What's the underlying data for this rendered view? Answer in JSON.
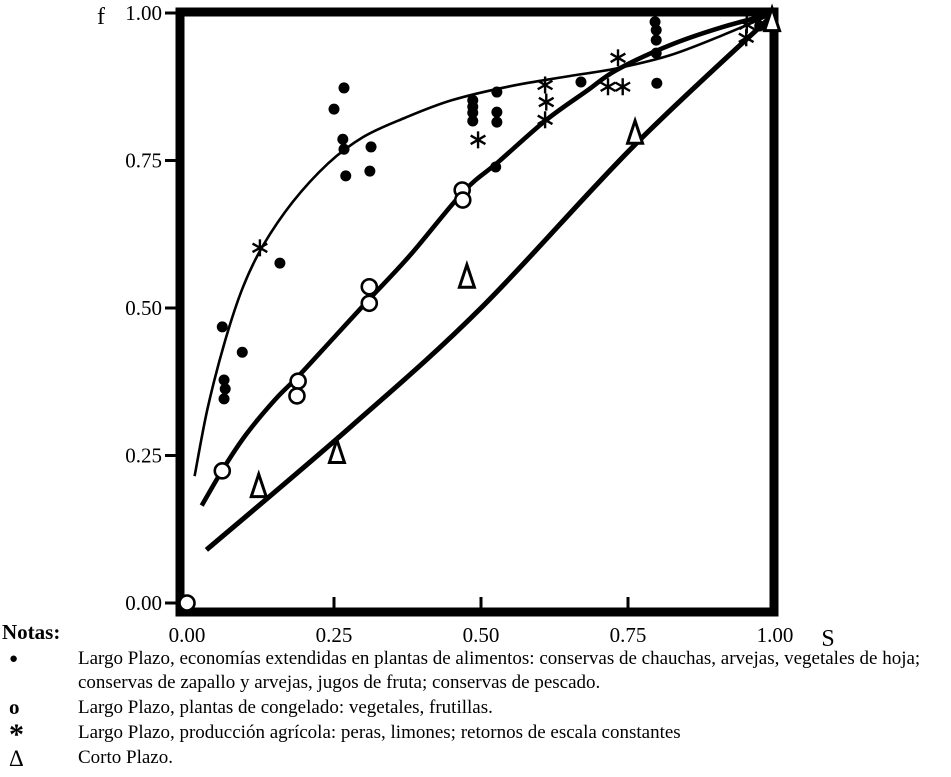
{
  "figure": {
    "notas_label": "Notas:",
    "notes": [
      {
        "symbol": "●",
        "marker": "dot",
        "text": "Largo Plazo, economías extendidas en plantas de alimentos: conservas de chauchas, arvejas, vegetales de hoja; conservas de zapallo y arvejas, jugos de fruta; conservas de pescado."
      },
      {
        "symbol": "o",
        "marker": "circle",
        "text": "Largo Plazo, plantas de congelado: vegetales, frutillas."
      },
      {
        "symbol": "*",
        "marker": "asterisk",
        "text": "Largo Plazo, producción agrícola: peras, limones; retornos de escala constantes"
      },
      {
        "symbol": "Δ",
        "marker": "triangle",
        "text": "Corto Plazo."
      }
    ]
  },
  "chart_data": {
    "type": "scatter",
    "title": "",
    "xlabel": "S",
    "ylabel": "f",
    "xlim": [
      0,
      1
    ],
    "ylim": [
      0,
      1
    ],
    "grid": false,
    "colors": {
      "ink": "#000000",
      "background": "#ffffff"
    },
    "x_ticks": [
      {
        "value": 0.0,
        "label": "0.00",
        "mark": false
      },
      {
        "value": 0.25,
        "label": "0.25",
        "mark": true
      },
      {
        "value": 0.5,
        "label": "0.50",
        "mark": true
      },
      {
        "value": 0.75,
        "label": "0.75",
        "mark": true
      },
      {
        "value": 1.0,
        "label": "1.00",
        "mark": false
      }
    ],
    "y_ticks": [
      {
        "value": 0.0,
        "label": "0.00",
        "mark": true
      },
      {
        "value": 0.25,
        "label": "0.25",
        "mark": true
      },
      {
        "value": 0.5,
        "label": "0.50",
        "mark": true
      },
      {
        "value": 0.75,
        "label": "0.75",
        "mark": true
      },
      {
        "value": 1.0,
        "label": "1.00",
        "mark": true
      }
    ],
    "series": [
      {
        "name": "Largo Plazo, economías extendidas en plantas de alimentos",
        "marker": "dot",
        "points": [
          [
            0.06,
            0.468
          ],
          [
            0.094,
            0.425
          ],
          [
            0.063,
            0.378
          ],
          [
            0.065,
            0.363
          ],
          [
            0.063,
            0.346
          ],
          [
            0.158,
            0.576
          ],
          [
            0.25,
            0.837
          ],
          [
            0.267,
            0.873
          ],
          [
            0.265,
            0.786
          ],
          [
            0.267,
            0.769
          ],
          [
            0.313,
            0.773
          ],
          [
            0.27,
            0.724
          ],
          [
            0.311,
            0.732
          ],
          [
            0.486,
            0.852
          ],
          [
            0.486,
            0.841
          ],
          [
            0.486,
            0.831
          ],
          [
            0.486,
            0.817
          ],
          [
            0.527,
            0.866
          ],
          [
            0.527,
            0.832
          ],
          [
            0.527,
            0.815
          ],
          [
            0.525,
            0.739
          ],
          [
            0.67,
            0.883
          ],
          [
            0.796,
            0.985
          ],
          [
            0.798,
            0.971
          ],
          [
            0.798,
            0.954
          ],
          [
            0.798,
            0.932
          ],
          [
            0.799,
            0.881
          ],
          [
            0.971,
            0.995
          ],
          [
            0.974,
            0.978
          ]
        ]
      },
      {
        "name": "Largo Plazo, plantas de congelado",
        "marker": "circle",
        "points": [
          [
            0.0,
            0.0
          ],
          [
            0.06,
            0.224
          ],
          [
            0.189,
            0.376
          ],
          [
            0.187,
            0.351
          ],
          [
            0.31,
            0.536
          ],
          [
            0.31,
            0.508
          ],
          [
            0.468,
            0.7
          ],
          [
            0.469,
            0.683
          ]
        ]
      },
      {
        "name": "Largo Plazo, producción agrícola",
        "marker": "asterisk",
        "points": [
          [
            0.124,
            0.602
          ],
          [
            0.495,
            0.785
          ],
          [
            0.609,
            0.878
          ],
          [
            0.611,
            0.849
          ],
          [
            0.609,
            0.819
          ],
          [
            0.733,
            0.924
          ],
          [
            0.716,
            0.875
          ],
          [
            0.741,
            0.875
          ],
          [
            0.952,
            0.98
          ],
          [
            0.951,
            0.958
          ]
        ]
      },
      {
        "name": "Corto Plazo",
        "marker": "triangle",
        "points": [
          [
            0.122,
            0.198
          ],
          [
            0.255,
            0.256
          ],
          [
            0.476,
            0.553
          ],
          [
            0.762,
            0.797
          ],
          [
            0.995,
            0.988
          ]
        ]
      }
    ],
    "curves": [
      {
        "name": "largo-plazo-extendidas-fit",
        "stroke_width": 2.6,
        "points": [
          [
            0.013,
            0.215
          ],
          [
            0.035,
            0.33
          ],
          [
            0.065,
            0.445
          ],
          [
            0.095,
            0.535
          ],
          [
            0.13,
            0.607
          ],
          [
            0.18,
            0.68
          ],
          [
            0.24,
            0.745
          ],
          [
            0.3,
            0.79
          ],
          [
            0.37,
            0.822
          ],
          [
            0.45,
            0.852
          ],
          [
            0.55,
            0.876
          ],
          [
            0.65,
            0.893
          ],
          [
            0.73,
            0.906
          ],
          [
            0.82,
            0.928
          ],
          [
            0.91,
            0.962
          ],
          [
            1.0,
            1.0
          ]
        ]
      },
      {
        "name": "largo-plazo-congelado-fit",
        "stroke_width": 4.6,
        "points": [
          [
            0.025,
            0.165
          ],
          [
            0.06,
            0.225
          ],
          [
            0.1,
            0.285
          ],
          [
            0.15,
            0.345
          ],
          [
            0.19,
            0.385
          ],
          [
            0.25,
            0.45
          ],
          [
            0.31,
            0.515
          ],
          [
            0.38,
            0.59
          ],
          [
            0.47,
            0.697
          ],
          [
            0.53,
            0.748
          ],
          [
            0.61,
            0.818
          ],
          [
            0.68,
            0.868
          ],
          [
            0.73,
            0.903
          ],
          [
            0.82,
            0.945
          ],
          [
            0.91,
            0.976
          ],
          [
            1.0,
            1.0
          ]
        ]
      },
      {
        "name": "corto-plazo-fit",
        "stroke_width": 5,
        "points": [
          [
            0.033,
            0.09
          ],
          [
            0.28,
            0.3
          ],
          [
            0.5,
            0.5
          ],
          [
            0.76,
            0.775
          ],
          [
            1.0,
            1.0
          ]
        ]
      }
    ]
  }
}
